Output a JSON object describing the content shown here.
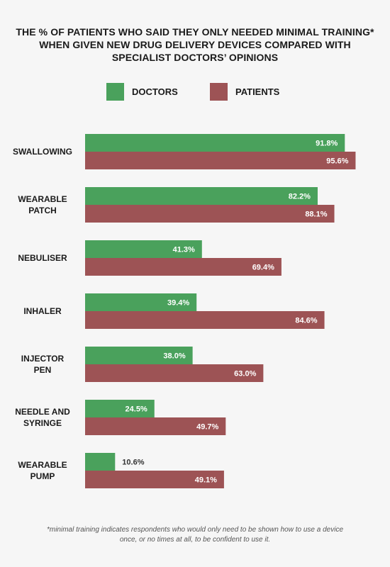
{
  "title": "THE % OF PATIENTS WHO SAID THEY ONLY NEEDED MINIMAL TRAINING* WHEN GIVEN NEW DRUG DELIVERY DEVICES COMPARED WITH SPECIALIST DOCTORS’ OPINIONS",
  "legend": [
    {
      "label": "DOCTORS",
      "color": "#4aa15c"
    },
    {
      "label": "PATIENTS",
      "color": "#9d5355"
    }
  ],
  "footnote": "*minimal training indicates respondents who would only need to be shown how to use a device once, or no times at all, to be confident to use it.",
  "chart_data": {
    "type": "bar",
    "orientation": "horizontal",
    "categories": [
      [
        "SWALLOWING"
      ],
      [
        "WEARABLE",
        "PATCH"
      ],
      [
        "NEBULISER"
      ],
      [
        "INHALER"
      ],
      [
        "INJECTOR",
        "PEN"
      ],
      [
        "NEEDLE AND",
        "SYRINGE"
      ],
      [
        "WEARABLE",
        "PUMP"
      ]
    ],
    "series": [
      {
        "name": "DOCTORS",
        "color": "#4aa15c",
        "values": [
          91.8,
          82.2,
          41.3,
          39.4,
          38.0,
          24.5,
          10.6
        ],
        "labels": [
          "91.8%",
          "82.2%",
          "41.3%",
          "39.4%",
          "38.0%",
          "24.5%",
          "10.6%"
        ]
      },
      {
        "name": "PATIENTS",
        "color": "#9d5355",
        "values": [
          95.6,
          88.1,
          69.4,
          84.6,
          63.0,
          49.7,
          49.1
        ],
        "labels": [
          "95.6%",
          "88.1%",
          "69.4%",
          "84.6%",
          "63.0%",
          "49.7%",
          "49.1%"
        ]
      }
    ],
    "xlim": [
      0,
      100
    ],
    "grid": false
  }
}
